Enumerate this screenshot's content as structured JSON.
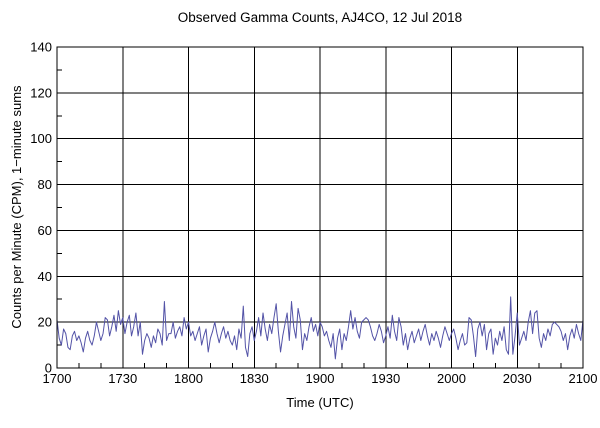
{
  "page": {
    "background_color": "#ffffff",
    "text_color": "#000000"
  },
  "chart_data": {
    "type": "line",
    "title": "Observed Gamma Counts, AJ4CO, 12 Jul 2018",
    "xlabel": "Time (UTC)",
    "ylabel": "Counts per Minute (CPM), 1−minute sums",
    "line_color": "#5353a7",
    "grid_color": "#000000",
    "axis_color": "#000000",
    "grid": true,
    "legend": "none",
    "ylim": [
      0,
      140
    ],
    "y_ticks": [
      0,
      20,
      40,
      60,
      80,
      100,
      120,
      140
    ],
    "y_minor_interval": 10,
    "x_tick_labels": [
      "1700",
      "1730",
      "1800",
      "1830",
      "1900",
      "1930",
      "2000",
      "2030",
      "2100"
    ],
    "x_major_interval_minutes": 30,
    "x_minor_interval_minutes": 10,
    "x_range_minutes": [
      0,
      240
    ],
    "x_start_time": "1700",
    "x_step_minutes": 1,
    "values": [
      21,
      13,
      10,
      17,
      15,
      9,
      8,
      14,
      16,
      12,
      14,
      11,
      7,
      13,
      16,
      12,
      10,
      14,
      20,
      16,
      12,
      15,
      22,
      21,
      14,
      18,
      23,
      16,
      25,
      19,
      22,
      15,
      20,
      23,
      14,
      18,
      24,
      14,
      20,
      6,
      12,
      15,
      13,
      9,
      14,
      11,
      17,
      15,
      10,
      29,
      12,
      15,
      15,
      20,
      13,
      16,
      18,
      14,
      22,
      17,
      20,
      14,
      16,
      12,
      15,
      18,
      10,
      14,
      17,
      7,
      13,
      16,
      20,
      15,
      11,
      15,
      18,
      13,
      16,
      12,
      10,
      14,
      8,
      17,
      13,
      27,
      9,
      5,
      15,
      18,
      12,
      16,
      22,
      14,
      24,
      17,
      12,
      19,
      15,
      22,
      28,
      16,
      7,
      14,
      19,
      24,
      12,
      29,
      18,
      13,
      26,
      21,
      8,
      15,
      12,
      18,
      22,
      16,
      19,
      14,
      20,
      18,
      14,
      16,
      12,
      9,
      15,
      4,
      13,
      17,
      8,
      15,
      12,
      18,
      25,
      17,
      22,
      16,
      13,
      20,
      21,
      22,
      21,
      18,
      14,
      12,
      15,
      19,
      16,
      11,
      14,
      18,
      13,
      23,
      16,
      12,
      22,
      18,
      10,
      15,
      8,
      13,
      16,
      11,
      14,
      17,
      12,
      16,
      19,
      14,
      10,
      15,
      12,
      16,
      13,
      9,
      14,
      18,
      15,
      12,
      15,
      17,
      13,
      8,
      12,
      15,
      10,
      11,
      22,
      21,
      14,
      5,
      17,
      20,
      14,
      19,
      8,
      15,
      17,
      6,
      13,
      10,
      16,
      12,
      18,
      8,
      6,
      31,
      6,
      14,
      24,
      10,
      13,
      16,
      12,
      20,
      25,
      15,
      24,
      25,
      13,
      9,
      15,
      12,
      17,
      14,
      19,
      20,
      19,
      18,
      16,
      12,
      15,
      8,
      14,
      17,
      13,
      19,
      15,
      12,
      21
    ]
  }
}
